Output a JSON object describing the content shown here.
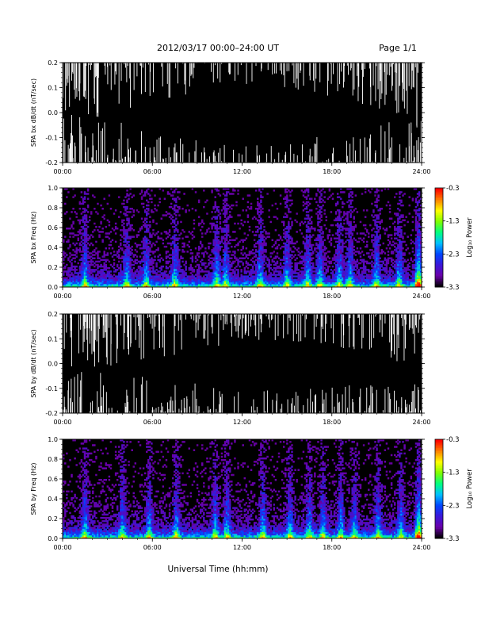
{
  "header": {
    "title": "2012/03/17  00:00–24:00 UT",
    "page": "Page 1/1"
  },
  "x_axis": {
    "label": "Universal Time (hh:mm)",
    "ticks": [
      "00:00",
      "06:00",
      "12:00",
      "18:00",
      "24:00"
    ]
  },
  "colorbar": {
    "label": "Log₁₀ Power",
    "ticks": [
      "-0.3",
      "-1.3",
      "-2.3",
      "-3.3"
    ],
    "range": [
      -3.3,
      -0.3
    ],
    "colormap": [
      "#000000",
      "#6a00a8",
      "#3b17d8",
      "#0045ff",
      "#00c0ff",
      "#00ff80",
      "#7fff00",
      "#ffff00",
      "#ff8000",
      "#ff0000"
    ]
  },
  "chart_data": [
    {
      "type": "line",
      "ylabel": "SPA bx dB/dt (nT/sec)",
      "xlim": [
        0,
        24
      ],
      "ylim": [
        -0.2,
        0.2
      ],
      "yticks": [
        "0.2",
        "0.1",
        "0.0",
        "-0.1",
        "-0.2"
      ],
      "ytick_values": [
        0.2,
        0.1,
        0.0,
        -0.1,
        -0.2
      ],
      "xticks": [
        "00:00",
        "06:00",
        "12:00",
        "18:00",
        "24:00"
      ],
      "activity_profile": {
        "hours": [
          0,
          2,
          4,
          6,
          8,
          10,
          12,
          14,
          16,
          18,
          20,
          22,
          24
        ],
        "level": [
          0.9,
          0.8,
          0.75,
          0.55,
          0.45,
          0.4,
          0.3,
          0.35,
          0.4,
          0.45,
          0.55,
          0.7,
          0.9
        ]
      }
    },
    {
      "type": "heatmap",
      "ylabel": "SPA bx Freq (Hz)",
      "xlim": [
        0,
        24
      ],
      "ylim": [
        0,
        1.0
      ],
      "yticks": [
        "1.0",
        "0.8",
        "0.6",
        "0.4",
        "0.2",
        "0.0"
      ],
      "ytick_values": [
        1.0,
        0.8,
        0.6,
        0.4,
        0.2,
        0.0
      ],
      "xticks": [
        "00:00",
        "06:00",
        "12:00",
        "18:00",
        "24:00"
      ],
      "zlim": [
        -3.3,
        -0.3
      ],
      "bursts_hours": [
        1.5,
        4.3,
        5.6,
        7.5,
        10.3,
        10.9,
        13.2,
        15.0,
        16.4,
        17.2,
        18.5,
        19.2,
        21.0,
        22.5,
        23.8
      ]
    },
    {
      "type": "line",
      "ylabel": "SPA by dB/dt (nT/sec)",
      "xlim": [
        0,
        24
      ],
      "ylim": [
        -0.2,
        0.2
      ],
      "yticks": [
        "0.2",
        "0.1",
        "0.0",
        "-0.1",
        "-0.2"
      ],
      "ytick_values": [
        0.2,
        0.1,
        0.0,
        -0.1,
        -0.2
      ],
      "xticks": [
        "00:00",
        "06:00",
        "12:00",
        "18:00",
        "24:00"
      ],
      "activity_profile": {
        "hours": [
          0,
          2,
          4,
          6,
          8,
          10,
          12,
          14,
          16,
          18,
          20,
          22,
          24
        ],
        "level": [
          0.8,
          0.75,
          0.7,
          0.6,
          0.55,
          0.45,
          0.35,
          0.4,
          0.4,
          0.45,
          0.5,
          0.6,
          0.85
        ]
      }
    },
    {
      "type": "heatmap",
      "ylabel": "SPA by Freq (Hz)",
      "xlim": [
        0,
        24
      ],
      "ylim": [
        0,
        1.0
      ],
      "yticks": [
        "1.0",
        "0.8",
        "0.6",
        "0.4",
        "0.2",
        "0.0"
      ],
      "ytick_values": [
        1.0,
        0.8,
        0.6,
        0.4,
        0.2,
        0.0
      ],
      "xticks": [
        "00:00",
        "06:00",
        "12:00",
        "18:00",
        "24:00"
      ],
      "zlim": [
        -3.3,
        -0.3
      ],
      "bursts_hours": [
        1.5,
        4.0,
        5.8,
        7.6,
        10.2,
        11.0,
        13.4,
        15.2,
        16.5,
        17.4,
        18.6,
        19.5,
        21.1,
        22.6,
        23.8
      ]
    }
  ]
}
